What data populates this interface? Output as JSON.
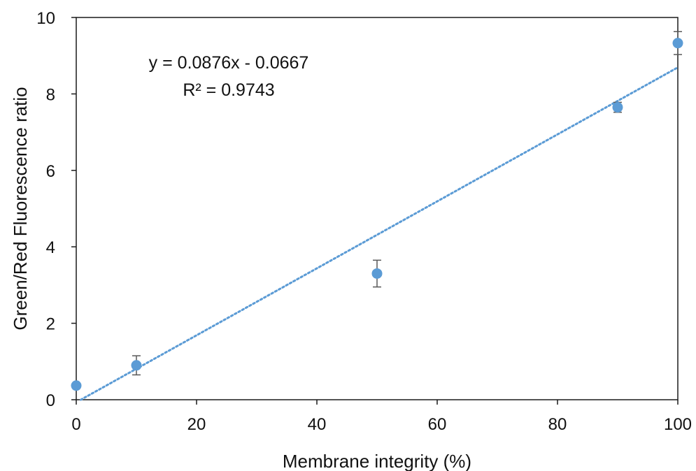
{
  "chart_data": {
    "type": "scatter",
    "xlabel": "Membrane integrity (%)",
    "ylabel": "Green/Red Fluorescence ratio",
    "xlim": [
      0,
      100
    ],
    "ylim": [
      0,
      10
    ],
    "xticks": [
      0,
      20,
      40,
      60,
      80,
      100
    ],
    "yticks": [
      0,
      2,
      4,
      6,
      8,
      10
    ],
    "grid": false,
    "series": [
      {
        "points": [
          {
            "x": 0,
            "y": 0.37,
            "err": 0
          },
          {
            "x": 10,
            "y": 0.9,
            "err": 0.25
          },
          {
            "x": 50,
            "y": 3.3,
            "err": 0.35
          },
          {
            "x": 90,
            "y": 7.65,
            "err": 0.13
          },
          {
            "x": 100,
            "y": 9.33,
            "err": 0.3
          }
        ],
        "color": "#5b9bd5"
      }
    ],
    "trendline": {
      "type": "linear",
      "slope": 0.0876,
      "intercept": -0.0667,
      "style": "dotted",
      "color": "#5b9bd5"
    },
    "annotations": {
      "equation": "y = 0.0876x - 0.0667",
      "r_squared": "R² = 0.9743"
    },
    "errorbar_color": "#595959"
  }
}
